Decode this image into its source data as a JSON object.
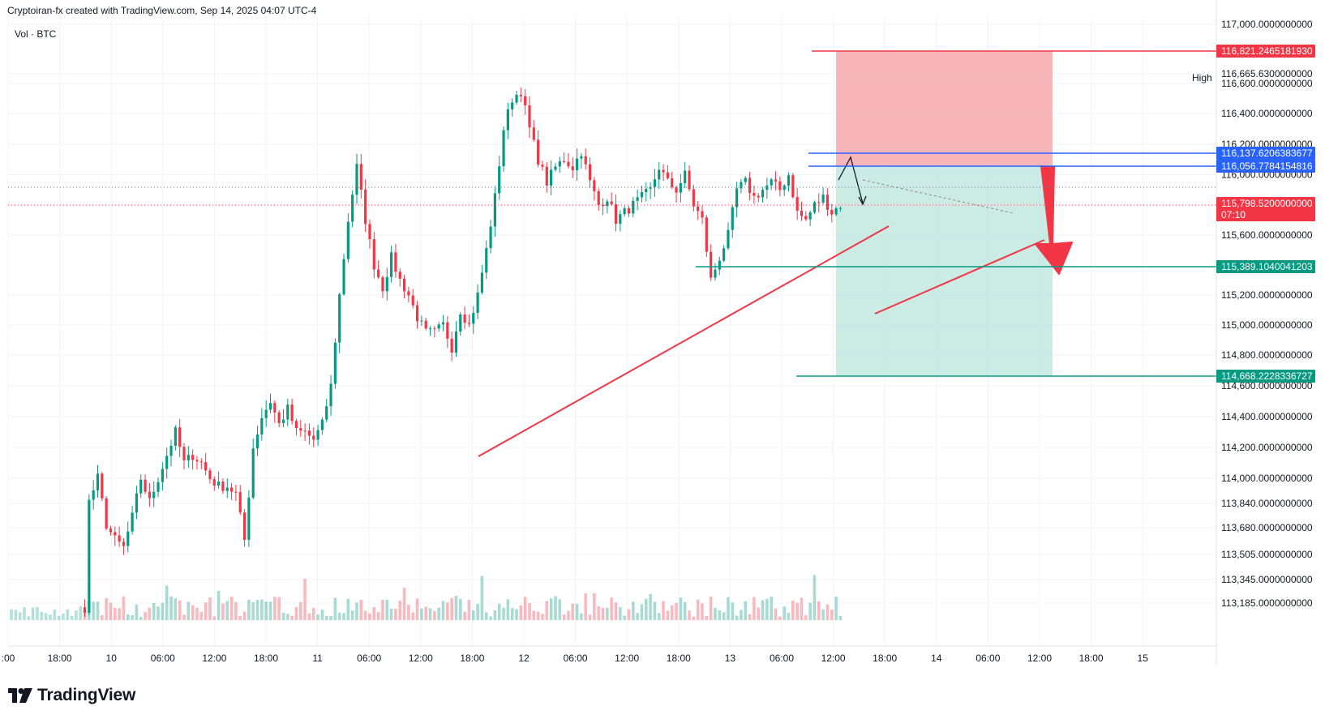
{
  "header": {
    "created_by": "Cryptoiran-fx created with TradingView.com, Sep 14, 2025 04:07 UTC-4",
    "volume_label": "Vol · BTC",
    "high_label": "High",
    "brand": "TradingView"
  },
  "colors": {
    "up": "#089981",
    "down": "#f23645",
    "stop_zone": "#f7a9ae",
    "target_zone": "#b9e4dc",
    "blue_line": "#2962ff",
    "green_line": "#089981",
    "red_line": "#f23645",
    "grid": "#f0f3fa"
  },
  "chart_data": {
    "type": "candlestick",
    "symbol": "BTC",
    "x_ticks": [
      ":00",
      "18:00",
      "10",
      "06:00",
      "12:00",
      "18:00",
      "11",
      "06:00",
      "12:00",
      "18:00",
      "12",
      "06:00",
      "12:00",
      "18:00",
      "13",
      "06:00",
      "12:00",
      "18:00",
      "14",
      "06:00",
      "12:00",
      "18:00",
      "15"
    ],
    "y_ticks": [
      "117,000.0000000000",
      "116,665.6300000000",
      "116,600.0000000000",
      "116,400.0000000000",
      "116,200.0000000000",
      "116,000.0000000000",
      "115,600.0000000000",
      "115,200.0000000000",
      "115,000.0000000000",
      "114,800.0000000000",
      "114,600.0000000000",
      "114,400.0000000000",
      "114,200.0000000000",
      "114,000.0000000000",
      "113,840.0000000000",
      "113,680.0000000000",
      "113,505.0000000000",
      "113,345.0000000000",
      "113,185.0000000000"
    ],
    "price_tags": [
      {
        "label": "116,821.2465181930",
        "color": "#f23645"
      },
      {
        "label": "116,137.6206383677",
        "color": "#2962ff"
      },
      {
        "label": "116,056.7784154816",
        "color": "#2962ff"
      },
      {
        "label": "115,798.5200000000",
        "sub": "07:10",
        "color": "#f23645"
      },
      {
        "label": "115,389.1040041203",
        "color": "#089981"
      },
      {
        "label": "114,668.2228336727",
        "color": "#089981"
      }
    ],
    "levels": {
      "stop_loss": 116821.246518193,
      "entry_high": 116137.6206383677,
      "entry": 116056.7784154816,
      "last_price": 115798.52,
      "target_1": 115389.1040041203,
      "target_2": 114668.2228336727,
      "high": 116665.63
    },
    "anchors": [
      {
        "t": 0,
        "p": 113000
      },
      {
        "t": 5,
        "p": 113100
      },
      {
        "t": 8.5,
        "p": 113150
      },
      {
        "t": 9,
        "p": 113850
      },
      {
        "t": 10,
        "p": 114000
      },
      {
        "t": 11,
        "p": 113700
      },
      {
        "t": 12,
        "p": 113600
      },
      {
        "t": 13,
        "p": 113550
      },
      {
        "t": 14,
        "p": 113750
      },
      {
        "t": 15,
        "p": 114000
      },
      {
        "t": 16,
        "p": 113850
      },
      {
        "t": 17,
        "p": 114000
      },
      {
        "t": 18,
        "p": 114150
      },
      {
        "t": 19,
        "p": 114300
      },
      {
        "t": 20,
        "p": 114100
      },
      {
        "t": 21,
        "p": 114150
      },
      {
        "t": 22,
        "p": 114100
      },
      {
        "t": 23,
        "p": 114000
      },
      {
        "t": 24,
        "p": 113950
      },
      {
        "t": 25,
        "p": 113950
      },
      {
        "t": 26,
        "p": 113900
      },
      {
        "t": 27,
        "p": 113600
      },
      {
        "t": 28,
        "p": 114200
      },
      {
        "t": 29,
        "p": 114400
      },
      {
        "t": 30,
        "p": 114500
      },
      {
        "t": 31,
        "p": 114350
      },
      {
        "t": 32,
        "p": 114450
      },
      {
        "t": 33,
        "p": 114300
      },
      {
        "t": 34,
        "p": 114300
      },
      {
        "t": 35,
        "p": 114250
      },
      {
        "t": 36,
        "p": 114350
      },
      {
        "t": 37,
        "p": 114600
      },
      {
        "t": 38,
        "p": 115200
      },
      {
        "t": 39,
        "p": 115700
      },
      {
        "t": 40,
        "p": 116050
      },
      {
        "t": 41,
        "p": 115700
      },
      {
        "t": 42,
        "p": 115400
      },
      {
        "t": 43,
        "p": 115250
      },
      {
        "t": 44,
        "p": 115450
      },
      {
        "t": 45,
        "p": 115300
      },
      {
        "t": 46,
        "p": 115200
      },
      {
        "t": 47,
        "p": 115050
      },
      {
        "t": 48,
        "p": 114950
      },
      {
        "t": 49,
        "p": 114950
      },
      {
        "t": 50,
        "p": 115000
      },
      {
        "t": 51,
        "p": 114850
      },
      {
        "t": 52,
        "p": 115100
      },
      {
        "t": 53,
        "p": 115000
      },
      {
        "t": 54,
        "p": 115200
      },
      {
        "t": 55,
        "p": 115500
      },
      {
        "t": 56,
        "p": 115850
      },
      {
        "t": 57,
        "p": 116300
      },
      {
        "t": 58,
        "p": 116500
      },
      {
        "t": 59,
        "p": 116550
      },
      {
        "t": 60,
        "p": 116300
      },
      {
        "t": 61,
        "p": 116100
      },
      {
        "t": 62,
        "p": 115950
      },
      {
        "t": 63,
        "p": 116050
      },
      {
        "t": 64,
        "p": 116100
      },
      {
        "t": 65,
        "p": 116050
      },
      {
        "t": 66,
        "p": 116150
      },
      {
        "t": 67,
        "p": 115950
      },
      {
        "t": 68,
        "p": 115800
      },
      {
        "t": 69,
        "p": 115850
      },
      {
        "t": 70,
        "p": 115700
      },
      {
        "t": 71,
        "p": 115750
      },
      {
        "t": 72,
        "p": 115800
      },
      {
        "t": 73,
        "p": 115850
      },
      {
        "t": 74,
        "p": 115900
      },
      {
        "t": 75,
        "p": 116050
      },
      {
        "t": 76,
        "p": 115950
      },
      {
        "t": 77,
        "p": 115900
      },
      {
        "t": 78,
        "p": 116000
      },
      {
        "t": 79,
        "p": 115800
      },
      {
        "t": 80,
        "p": 115700
      },
      {
        "t": 81,
        "p": 115300
      },
      {
        "t": 82,
        "p": 115450
      },
      {
        "t": 83,
        "p": 115600
      },
      {
        "t": 84,
        "p": 115900
      },
      {
        "t": 85,
        "p": 115950
      },
      {
        "t": 86,
        "p": 115850
      },
      {
        "t": 87,
        "p": 115900
      },
      {
        "t": 88,
        "p": 115950
      },
      {
        "t": 89,
        "p": 115900
      },
      {
        "t": 90,
        "p": 116000
      },
      {
        "t": 91,
        "p": 115750
      },
      {
        "t": 92,
        "p": 115700
      },
      {
        "t": 93,
        "p": 115800
      },
      {
        "t": 94,
        "p": 115850
      },
      {
        "t": 95,
        "p": 115750
      },
      {
        "t": 96,
        "p": 115800
      }
    ]
  }
}
